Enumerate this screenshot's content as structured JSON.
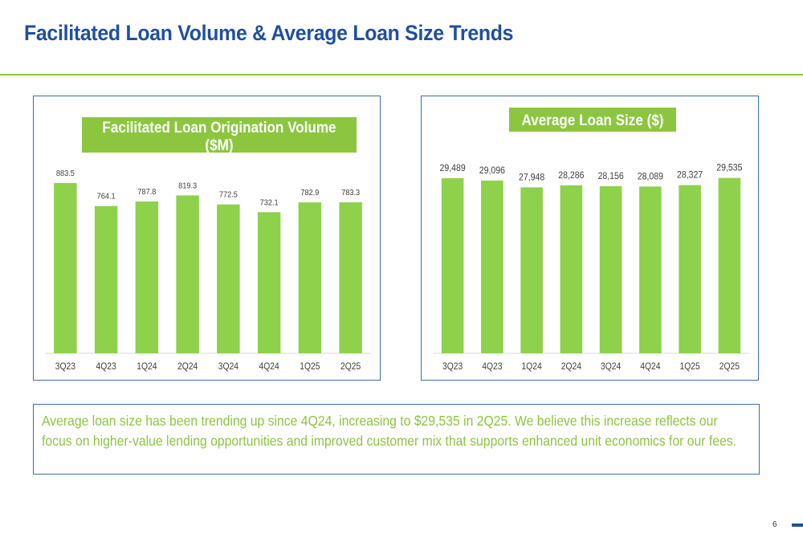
{
  "page": {
    "title": "Facilitated Loan Volume & Average Loan Size Trends",
    "caption": "Average loan size has been trending up since 4Q24, increasing to $29,535 in 2Q25. We believe this increase reflects our focus on higher-value lending opportunities and improved customer mix that supports enhanced unit economics for our fees.",
    "page_number": "6"
  },
  "colors": {
    "title": "#1f4fa0",
    "accent_green": "#8cc63f",
    "bar": "#8ed14b",
    "border": "#3a6db5"
  },
  "chart_data": [
    {
      "type": "bar",
      "title": "Facilitated Loan Origination Volume ($M)",
      "title_lines": [
        "Facilitated Loan Origination Volume",
        "($M)"
      ],
      "categories": [
        "3Q23",
        "4Q23",
        "1Q24",
        "2Q24",
        "3Q24",
        "4Q24",
        "1Q25",
        "2Q25"
      ],
      "values": [
        883.5,
        764.1,
        787.8,
        819.3,
        772.5,
        732.1,
        782.9,
        783.3
      ],
      "labels": [
        "883.5",
        "764.1",
        "787.8",
        "819.3",
        "772.5",
        "732.1",
        "782.9",
        "783.3"
      ],
      "ylim": [
        0,
        1000
      ],
      "grid": false,
      "legend": "none"
    },
    {
      "type": "bar",
      "title": "Average Loan Size ($)",
      "title_lines": [
        "Average Loan Size ($)"
      ],
      "categories": [
        "3Q23",
        "4Q23",
        "1Q24",
        "2Q24",
        "3Q24",
        "4Q24",
        "1Q25",
        "2Q25"
      ],
      "values": [
        29489,
        29096,
        27948,
        28286,
        28156,
        28089,
        28327,
        29535
      ],
      "labels": [
        "29,489",
        "29,096",
        "27,948",
        "28,286",
        "28,156",
        "28,089",
        "28,327",
        "29,535"
      ],
      "ylim": [
        0,
        33000
      ],
      "grid": false,
      "legend": "none"
    }
  ]
}
